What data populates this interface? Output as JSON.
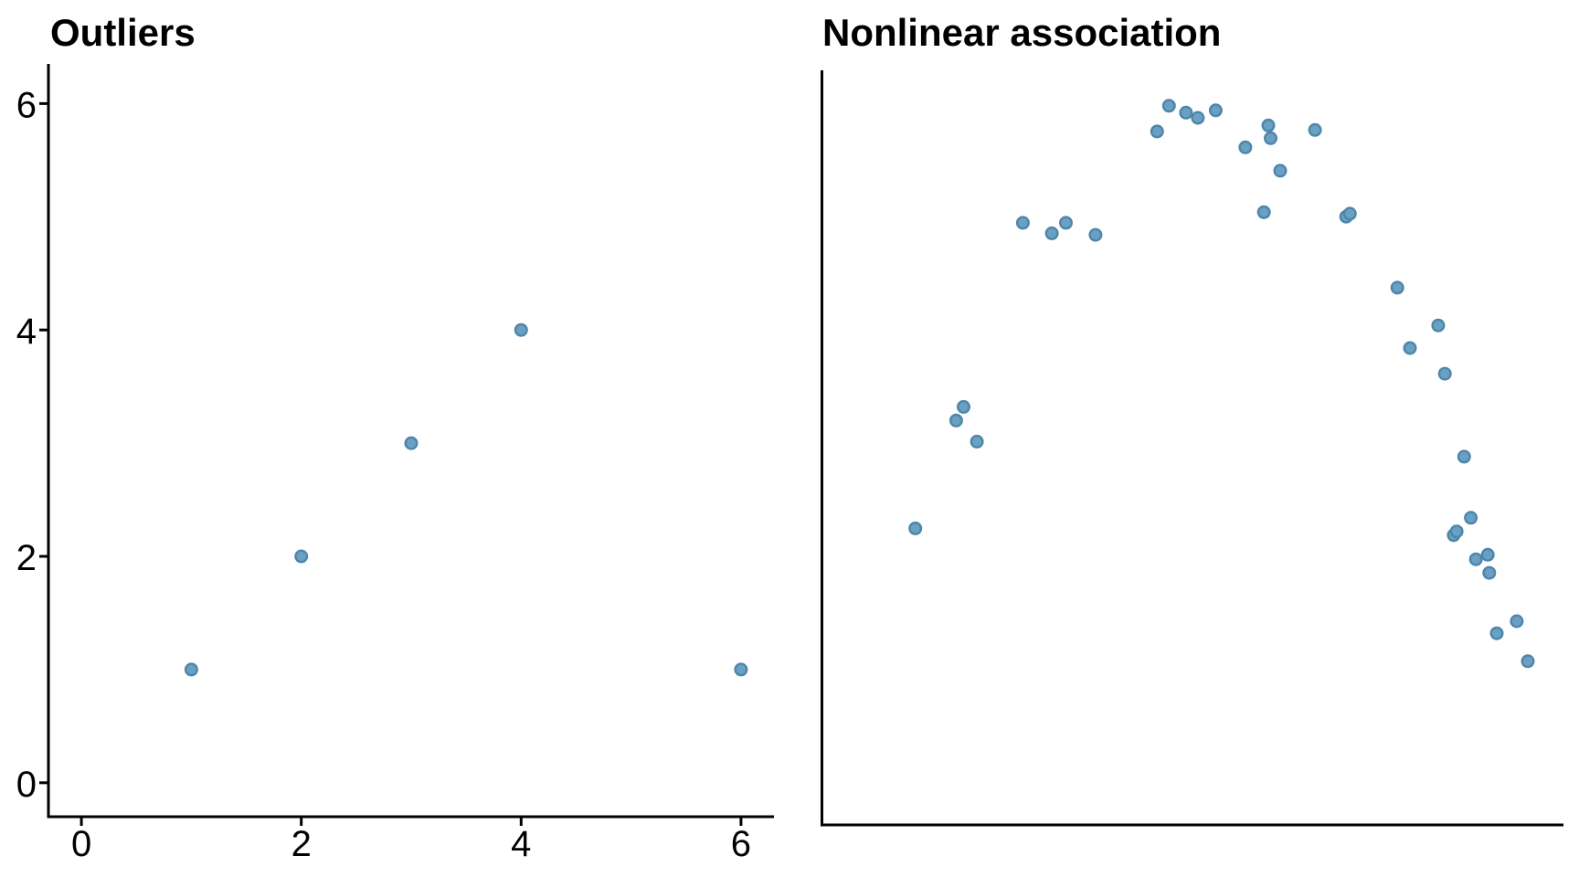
{
  "figure": {
    "background": "#ffffff"
  },
  "style": {
    "point_fill": "#69A0C4",
    "point_stroke": "#4E86AA",
    "axis_color": "#000000",
    "text_color": "#000000"
  },
  "chart_data": [
    {
      "type": "scatter",
      "title": "Outliers",
      "xticks": [
        0,
        2,
        4,
        6
      ],
      "yticks": [
        0,
        2,
        4,
        6
      ],
      "xlim": [
        -0.3,
        6.3
      ],
      "ylim": [
        -0.3,
        6.35
      ],
      "grid": false,
      "legend_position": "none",
      "points": [
        [
          1,
          1
        ],
        [
          2,
          2
        ],
        [
          3,
          3
        ],
        [
          4,
          4
        ],
        [
          6,
          1
        ]
      ]
    },
    {
      "type": "scatter",
      "title": "Nonlinear association",
      "xticks": [],
      "yticks": [],
      "xlim": [
        0,
        10
      ],
      "ylim": [
        0,
        10
      ],
      "grid": false,
      "legend_position": "none",
      "points": [
        [
          1.26,
          3.93
        ],
        [
          1.81,
          5.36
        ],
        [
          1.91,
          5.54
        ],
        [
          2.09,
          5.08
        ],
        [
          2.71,
          7.98
        ],
        [
          3.1,
          7.84
        ],
        [
          3.29,
          7.98
        ],
        [
          3.69,
          7.82
        ],
        [
          4.52,
          9.19
        ],
        [
          4.68,
          9.53
        ],
        [
          4.91,
          9.44
        ],
        [
          5.07,
          9.37
        ],
        [
          5.31,
          9.47
        ],
        [
          5.71,
          8.98
        ],
        [
          5.96,
          8.12
        ],
        [
          6.02,
          9.27
        ],
        [
          6.05,
          9.1
        ],
        [
          6.18,
          8.67
        ],
        [
          6.65,
          9.21
        ],
        [
          7.07,
          8.06
        ],
        [
          7.12,
          8.1
        ],
        [
          7.76,
          7.12
        ],
        [
          7.93,
          6.32
        ],
        [
          8.31,
          6.62
        ],
        [
          8.4,
          5.98
        ],
        [
          8.66,
          4.88
        ],
        [
          8.75,
          4.07
        ],
        [
          8.52,
          3.84
        ],
        [
          8.56,
          3.89
        ],
        [
          8.82,
          3.52
        ],
        [
          8.98,
          3.58
        ],
        [
          9.0,
          3.34
        ],
        [
          9.1,
          2.54
        ],
        [
          9.37,
          2.7
        ],
        [
          9.52,
          2.17
        ]
      ]
    }
  ]
}
